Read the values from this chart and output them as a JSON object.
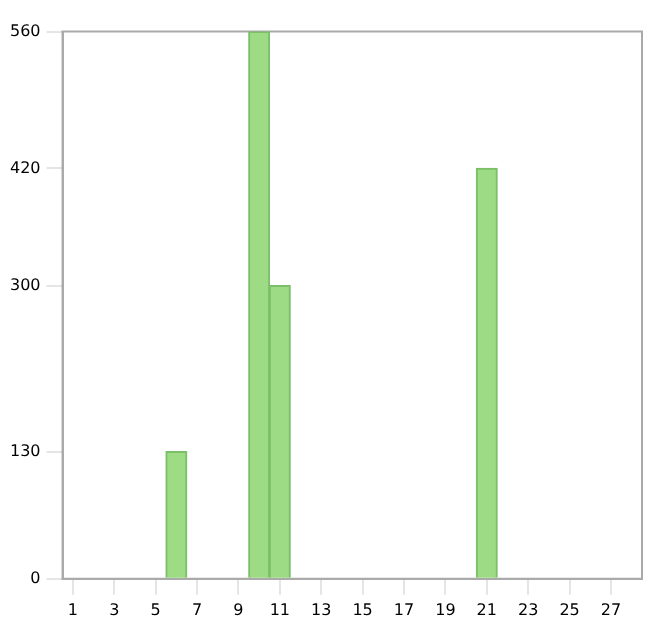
{
  "chart_data": {
    "type": "bar",
    "x": [
      1,
      2,
      3,
      4,
      5,
      6,
      7,
      8,
      9,
      10,
      11,
      12,
      13,
      14,
      15,
      16,
      17,
      18,
      19,
      20,
      21,
      22,
      23,
      24,
      25,
      26,
      27,
      28
    ],
    "values": [
      0,
      0,
      0,
      0,
      0,
      130,
      0,
      0,
      0,
      560,
      300,
      0,
      0,
      0,
      0,
      0,
      0,
      0,
      0,
      0,
      420,
      0,
      0,
      0,
      0,
      0,
      0,
      0
    ],
    "color": "#9ddc85",
    "xlim": [
      0.5,
      28.5
    ],
    "xticks": [
      1,
      3,
      5,
      7,
      9,
      11,
      13,
      15,
      17,
      19,
      21,
      23,
      25,
      27
    ],
    "ylim": [
      0,
      560
    ],
    "yticks": [
      0,
      130,
      300,
      420,
      560
    ],
    "grid": false
  }
}
